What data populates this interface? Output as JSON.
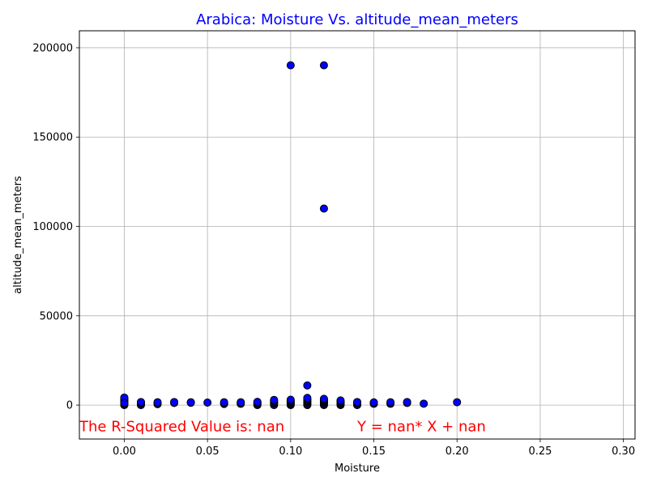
{
  "chart_data": {
    "type": "scatter",
    "title": "Arabica: Moisture Vs. altitude_mean_meters",
    "title_color": "#0000ff",
    "xlabel": "Moisture",
    "ylabel": "altitude_mean_meters",
    "xlim": [
      -0.027,
      0.307
    ],
    "ylim": [
      -19000,
      209500
    ],
    "xticks": [
      0.0,
      0.05,
      0.1,
      0.15,
      0.2,
      0.25,
      0.3
    ],
    "xtick_labels": [
      "0.00",
      "0.05",
      "0.10",
      "0.15",
      "0.20",
      "0.25",
      "0.30"
    ],
    "yticks": [
      0,
      50000,
      100000,
      150000,
      200000
    ],
    "ytick_labels": [
      "0",
      "50000",
      "100000",
      "150000",
      "200000"
    ],
    "grid": true,
    "marker_color": "#0000ff",
    "marker_edge": "#000000",
    "annotation_color": "#ff0000",
    "annotations": [
      {
        "text": "The R-Squared Value is: nan",
        "x": -0.027,
        "y": -12000
      },
      {
        "text": "Y = nan* X + nan",
        "x": 0.14,
        "y": -12000
      }
    ],
    "points": [
      [
        0.0,
        0
      ],
      [
        0.0,
        600
      ],
      [
        0.0,
        1000
      ],
      [
        0.0,
        1400
      ],
      [
        0.0,
        1800
      ],
      [
        0.0,
        2200
      ],
      [
        0.0,
        2600
      ],
      [
        0.0,
        3000
      ],
      [
        0.0,
        3400
      ],
      [
        0.0,
        3800
      ],
      [
        0.0,
        4200
      ],
      [
        0.0,
        1200
      ],
      [
        0.01,
        0
      ],
      [
        0.01,
        800
      ],
      [
        0.01,
        1300
      ],
      [
        0.01,
        1700
      ],
      [
        0.02,
        500
      ],
      [
        0.02,
        1100
      ],
      [
        0.02,
        1600
      ],
      [
        0.03,
        1200
      ],
      [
        0.03,
        1700
      ],
      [
        0.04,
        1300
      ],
      [
        0.04,
        1600
      ],
      [
        0.05,
        1400
      ],
      [
        0.06,
        600
      ],
      [
        0.06,
        1100
      ],
      [
        0.06,
        1600
      ],
      [
        0.07,
        700
      ],
      [
        0.07,
        1200
      ],
      [
        0.07,
        1600
      ],
      [
        0.08,
        0
      ],
      [
        0.08,
        600
      ],
      [
        0.08,
        1100
      ],
      [
        0.08,
        1500
      ],
      [
        0.08,
        1800
      ],
      [
        0.09,
        0
      ],
      [
        0.09,
        800
      ],
      [
        0.09,
        1300
      ],
      [
        0.09,
        1800
      ],
      [
        0.09,
        2400
      ],
      [
        0.09,
        2900
      ],
      [
        0.1,
        0
      ],
      [
        0.1,
        500
      ],
      [
        0.1,
        1000
      ],
      [
        0.1,
        1500
      ],
      [
        0.1,
        2000
      ],
      [
        0.1,
        2500
      ],
      [
        0.1,
        3000
      ],
      [
        0.1,
        190164
      ],
      [
        0.11,
        0
      ],
      [
        0.11,
        500
      ],
      [
        0.11,
        1000
      ],
      [
        0.11,
        1500
      ],
      [
        0.11,
        2000
      ],
      [
        0.11,
        2500
      ],
      [
        0.11,
        3000
      ],
      [
        0.11,
        3500
      ],
      [
        0.11,
        4000
      ],
      [
        0.11,
        11000
      ],
      [
        0.12,
        0
      ],
      [
        0.12,
        500
      ],
      [
        0.12,
        1000
      ],
      [
        0.12,
        1500
      ],
      [
        0.12,
        2000
      ],
      [
        0.12,
        2500
      ],
      [
        0.12,
        3000
      ],
      [
        0.12,
        3500
      ],
      [
        0.12,
        110000
      ],
      [
        0.12,
        190164
      ],
      [
        0.13,
        0
      ],
      [
        0.13,
        600
      ],
      [
        0.13,
        1100
      ],
      [
        0.13,
        1600
      ],
      [
        0.13,
        2100
      ],
      [
        0.13,
        2600
      ],
      [
        0.14,
        0
      ],
      [
        0.14,
        700
      ],
      [
        0.14,
        1200
      ],
      [
        0.14,
        1700
      ],
      [
        0.15,
        700
      ],
      [
        0.15,
        1200
      ],
      [
        0.15,
        1500
      ],
      [
        0.16,
        700
      ],
      [
        0.16,
        1200
      ],
      [
        0.16,
        1600
      ],
      [
        0.17,
        1200
      ],
      [
        0.17,
        1700
      ],
      [
        0.18,
        800
      ],
      [
        0.2,
        1600
      ]
    ]
  }
}
